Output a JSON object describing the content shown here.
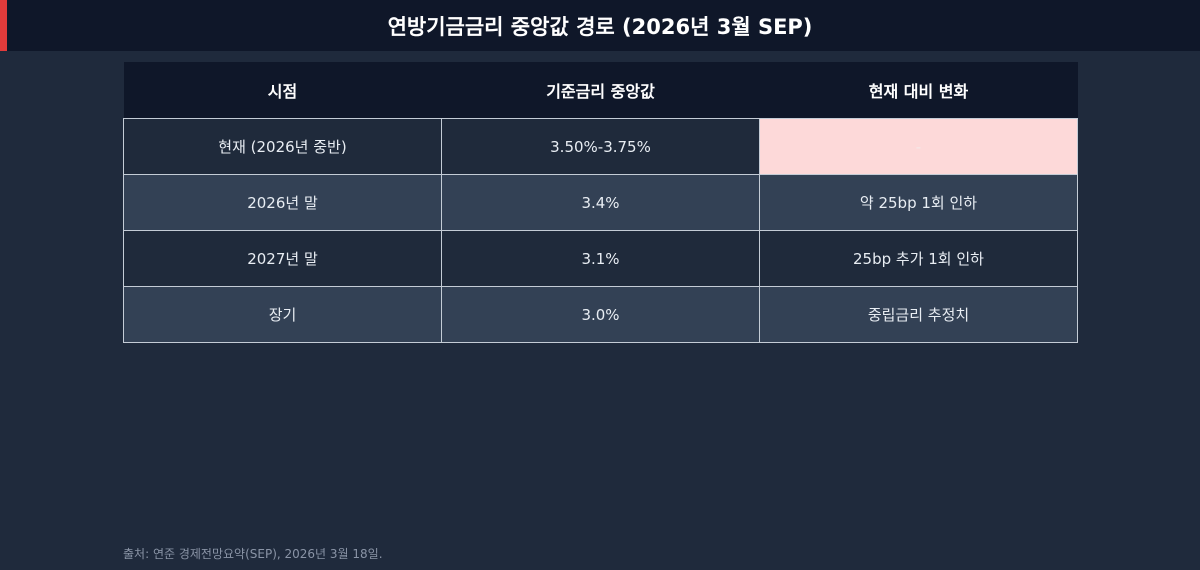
{
  "header": {
    "title": "연방기금금리 중앙값 경로 (2026년 3월 SEP)"
  },
  "table": {
    "columns": [
      "시점",
      "기준금리 중앙값",
      "현재 대비 변화"
    ],
    "rows": [
      [
        "현재 (2026년 중반)",
        "3.50%-3.75%",
        "-"
      ],
      [
        "2026년 말",
        "3.4%",
        "약 25bp 1회 인하"
      ],
      [
        "2027년 말",
        "3.1%",
        "25bp 추가 1회 인하"
      ],
      [
        "장기",
        "3.0%",
        "중립금리 추정치"
      ]
    ]
  },
  "footer": {
    "source": "출처: 연준 경제전망요약(SEP), 2026년 3월 18일."
  }
}
